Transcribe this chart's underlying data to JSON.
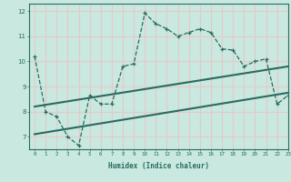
{
  "title": "",
  "xlabel": "Humidex (Indice chaleur)",
  "xlim": [
    -0.5,
    23
  ],
  "ylim": [
    6.5,
    12.3
  ],
  "xticks": [
    0,
    1,
    2,
    3,
    4,
    5,
    6,
    7,
    8,
    9,
    10,
    11,
    12,
    13,
    14,
    15,
    16,
    17,
    18,
    19,
    20,
    21,
    22,
    23
  ],
  "yticks": [
    7,
    8,
    9,
    10,
    11,
    12
  ],
  "bg_color": "#c8e8e0",
  "grid_color": "#e8c8c8",
  "line_color": "#2a6b5e",
  "line1_x": [
    0,
    1,
    2,
    3,
    4,
    5,
    6,
    7,
    8,
    9,
    10,
    11,
    12,
    13,
    14,
    15,
    16,
    17,
    18,
    19,
    20,
    21,
    22,
    23
  ],
  "line1_y": [
    10.2,
    8.0,
    7.8,
    7.0,
    6.65,
    8.65,
    8.3,
    8.3,
    9.8,
    9.9,
    11.92,
    11.5,
    11.3,
    11.0,
    11.15,
    11.3,
    11.15,
    10.5,
    10.45,
    9.8,
    10.0,
    10.1,
    8.3,
    8.65
  ],
  "line2_x": [
    0,
    23
  ],
  "line2_y": [
    8.2,
    9.8
  ],
  "line3_x": [
    0,
    23
  ],
  "line3_y": [
    7.1,
    8.75
  ]
}
